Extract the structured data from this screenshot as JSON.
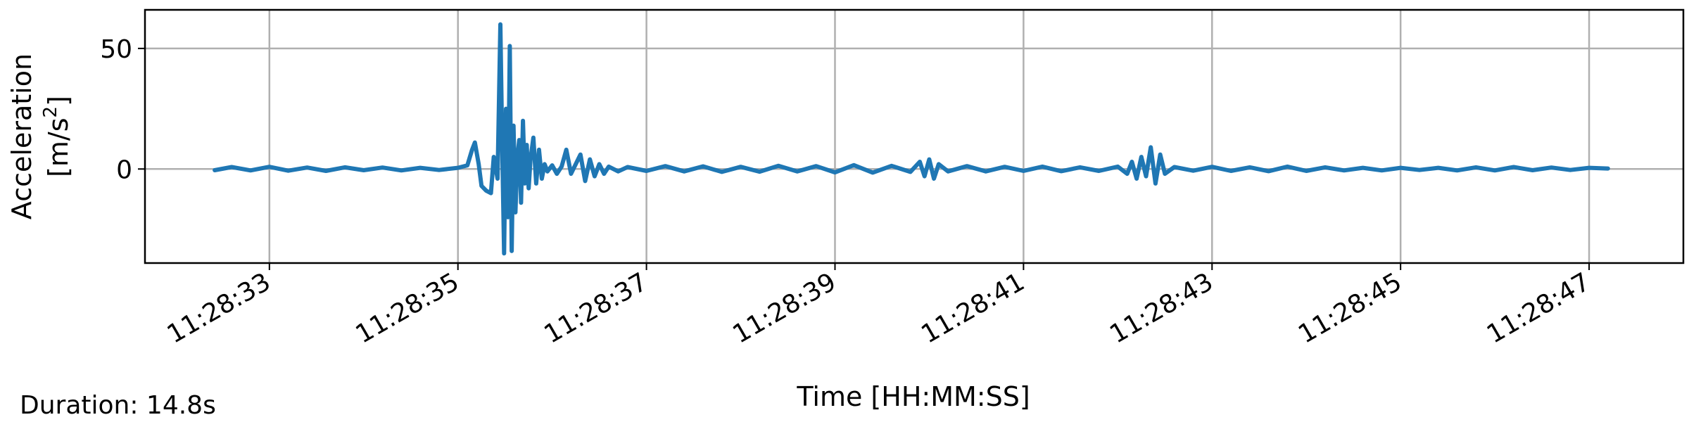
{
  "chart_data": {
    "type": "line",
    "xlabel": "Time [HH:MM:SS]",
    "ylabel": "Acceleration",
    "ylabel_unit": "[m/s",
    "ylabel_unit_sup": "2",
    "ylabel_unit_close": "]",
    "x_tick_labels": [
      "11:28:33",
      "11:28:35",
      "11:28:37",
      "11:28:39",
      "11:28:41",
      "11:28:43",
      "11:28:45",
      "11:28:47"
    ],
    "x_tick_seconds": [
      33,
      35,
      37,
      39,
      41,
      43,
      45,
      47
    ],
    "xlim": [
      31.68,
      48.0
    ],
    "y_ticks": [
      0,
      50
    ],
    "ylim": [
      -39,
      66
    ],
    "grid": true,
    "line_color": "#1f77b4",
    "series": [
      {
        "x": [
          32.42,
          32.6,
          32.8,
          33.0,
          33.2,
          33.4,
          33.6,
          33.8,
          34.0,
          34.2,
          34.4,
          34.6,
          34.8,
          35.0,
          35.1,
          35.15,
          35.18,
          35.22,
          35.25,
          35.3,
          35.35,
          35.38,
          35.42,
          35.45,
          35.47,
          35.49,
          35.51,
          35.53,
          35.55,
          35.57,
          35.59,
          35.61,
          35.63,
          35.65,
          35.67,
          35.69,
          35.71,
          35.73,
          35.75,
          35.77,
          35.8,
          35.83,
          35.86,
          35.89,
          35.92,
          35.95,
          36.0,
          36.05,
          36.1,
          36.15,
          36.2,
          36.3,
          36.35,
          36.4,
          36.45,
          36.5,
          36.55,
          36.6,
          36.7,
          36.8,
          37.0,
          37.2,
          37.4,
          37.6,
          37.8,
          38.0,
          38.2,
          38.4,
          38.6,
          38.8,
          39.0,
          39.2,
          39.4,
          39.6,
          39.8,
          39.9,
          39.95,
          40.0,
          40.05,
          40.1,
          40.2,
          40.4,
          40.6,
          40.8,
          41.0,
          41.2,
          41.4,
          41.6,
          41.8,
          42.0,
          42.1,
          42.15,
          42.2,
          42.25,
          42.3,
          42.35,
          42.4,
          42.45,
          42.5,
          42.6,
          42.8,
          43.0,
          43.2,
          43.4,
          43.6,
          43.8,
          44.0,
          44.2,
          44.4,
          44.6,
          44.8,
          45.0,
          45.2,
          45.4,
          45.6,
          45.8,
          46.0,
          46.2,
          46.4,
          46.6,
          46.8,
          47.0,
          47.2
        ],
        "values": [
          -0.5,
          0.8,
          -0.6,
          0.9,
          -0.7,
          0.6,
          -0.8,
          0.7,
          -0.5,
          0.6,
          -0.6,
          0.5,
          -0.4,
          0.5,
          1.5,
          8,
          11,
          2,
          -7,
          -9,
          -10,
          5,
          -4,
          60,
          8,
          -35,
          25,
          -20,
          51,
          -34,
          18,
          -18,
          5,
          12,
          -14,
          20,
          -6,
          10,
          -8,
          4,
          13,
          -6,
          8,
          -4,
          2,
          -1,
          1.5,
          -2,
          1,
          8,
          -2,
          6,
          -5,
          4,
          -3,
          2,
          -2,
          1,
          -1,
          0.8,
          -0.8,
          1.2,
          -1.0,
          1.1,
          -1.2,
          0.9,
          -1.1,
          1.3,
          -1.0,
          1.2,
          -1.4,
          1.6,
          -1.5,
          1.3,
          -1.2,
          3,
          -3,
          4,
          -4,
          2,
          -1,
          1.2,
          -1.0,
          0.9,
          -0.8,
          1.0,
          -0.9,
          0.7,
          -0.8,
          1.0,
          -2,
          3,
          -4,
          5,
          -3,
          9,
          -6,
          6,
          -2,
          0.8,
          -0.7,
          0.9,
          -0.8,
          0.7,
          -0.9,
          1.0,
          -0.8,
          0.7,
          -0.6,
          0.5,
          -0.6,
          0.5,
          -0.4,
          0.5,
          -0.6,
          0.7,
          -0.6,
          0.8,
          -0.5,
          0.6,
          -0.4,
          0.5,
          0.2
        ]
      }
    ]
  },
  "footnote": "Duration: 14.8s"
}
